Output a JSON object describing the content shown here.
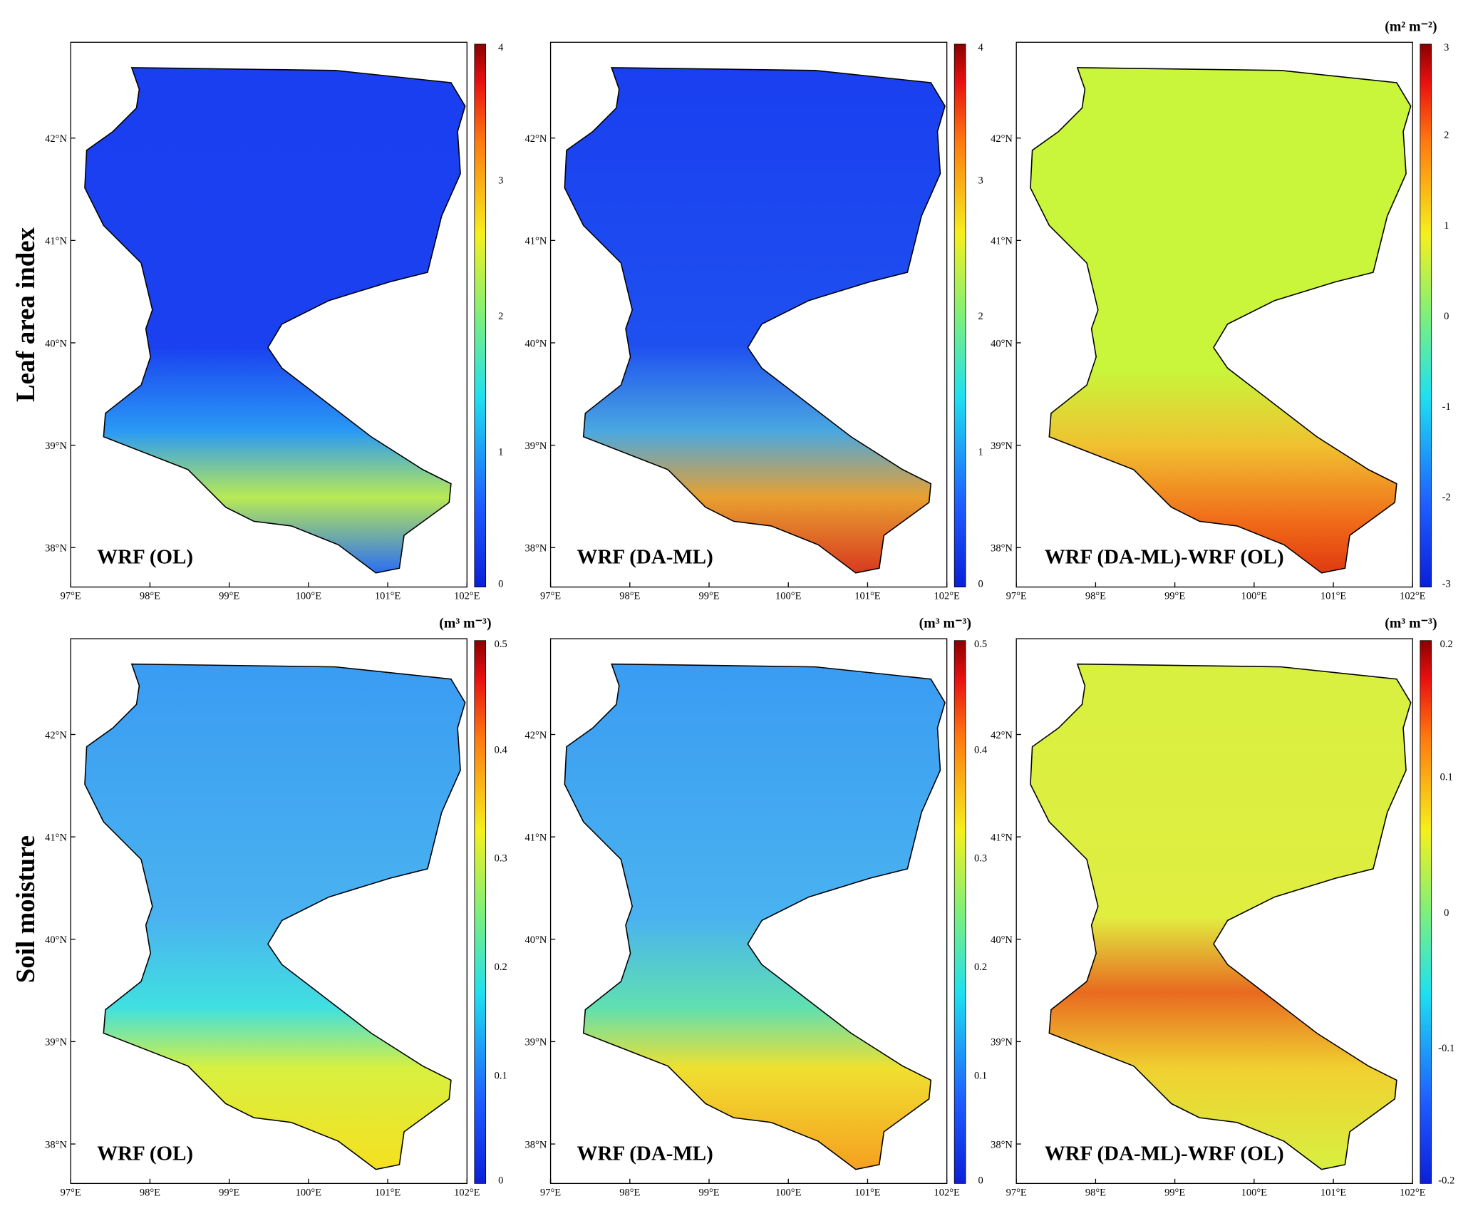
{
  "row_labels": [
    "Leaf area index",
    "Soil moisture"
  ],
  "x_ticks": [
    "97°E",
    "98°E",
    "99°E",
    "100°E",
    "101°E",
    "102°E"
  ],
  "y_ticks": [
    "38°N",
    "39°N",
    "40°N",
    "41°N",
    "42°N"
  ],
  "panels": [
    {
      "label": "WRF (OL)",
      "colorbar_ticks": [
        "0",
        "1",
        "2",
        "3",
        "4"
      ]
    },
    {
      "label": "WRF (DA-ML)",
      "colorbar_ticks": [
        "0",
        "1",
        "2",
        "3",
        "4"
      ]
    },
    {
      "label": "WRF (DA-ML)-WRF (OL)",
      "unit": "(m² m⁻²)",
      "colorbar_ticks": [
        "-3",
        "-2",
        "-1",
        "0",
        "1",
        "2",
        "3"
      ]
    },
    {
      "label": "WRF (OL)",
      "unit": "(m³ m⁻³)",
      "colorbar_ticks": [
        "0",
        "0.1",
        "0.2",
        "0.3",
        "0.4",
        "0.5"
      ]
    },
    {
      "label": "WRF (DA-ML)",
      "unit": "(m³ m⁻³)",
      "colorbar_ticks": [
        "0",
        "0.1",
        "0.2",
        "0.3",
        "0.4",
        "0.5"
      ]
    },
    {
      "label": "WRF (DA-ML)-WRF (OL)",
      "unit": "(m³ m⁻³)",
      "colorbar_ticks": [
        "-0.2",
        "-0.1",
        "0",
        "0.1",
        "0.2"
      ]
    }
  ]
}
